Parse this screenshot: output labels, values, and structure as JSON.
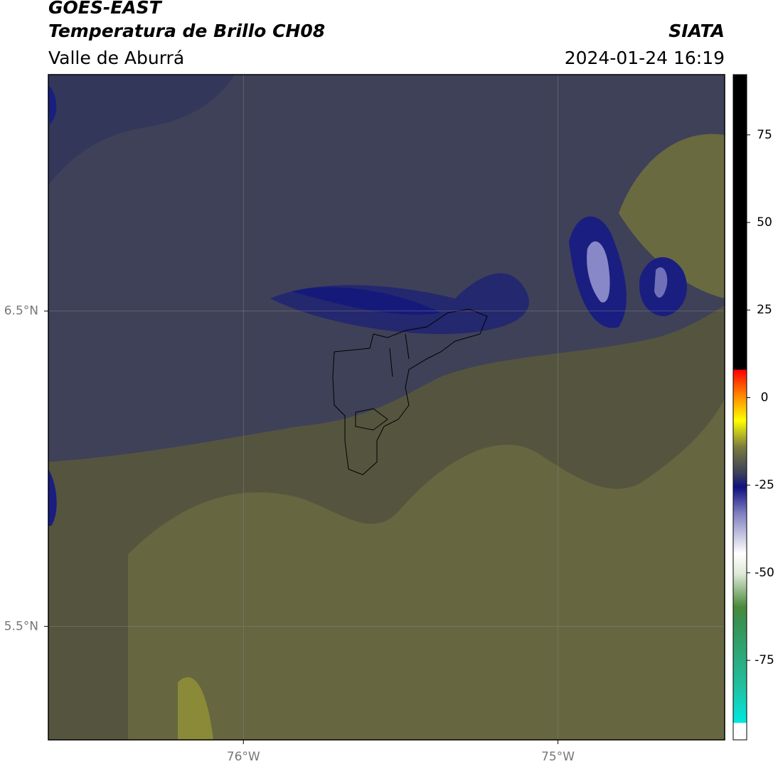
{
  "header": {
    "title": "GOES-EAST",
    "subtitle": "Temperatura de Brillo CH08",
    "region": "Valle de Aburrá",
    "source": "SIATA",
    "datetime": "2024-01-24 16:19"
  },
  "map": {
    "xlim": [
      -76.62,
      -74.47
    ],
    "ylim": [
      5.14,
      7.25
    ],
    "xticks": [
      {
        "value": -76,
        "label": "76°W"
      },
      {
        "value": -75,
        "label": "75°W"
      }
    ],
    "yticks": [
      {
        "value": 6.5,
        "label": "6.5°N"
      },
      {
        "value": 5.5,
        "label": "5.5°N"
      }
    ],
    "grid": true
  },
  "colorbar": {
    "lim": [
      -97.7,
      92.2
    ],
    "ticks": [
      75,
      50,
      25,
      0,
      -25,
      -50,
      -75
    ]
  }
}
